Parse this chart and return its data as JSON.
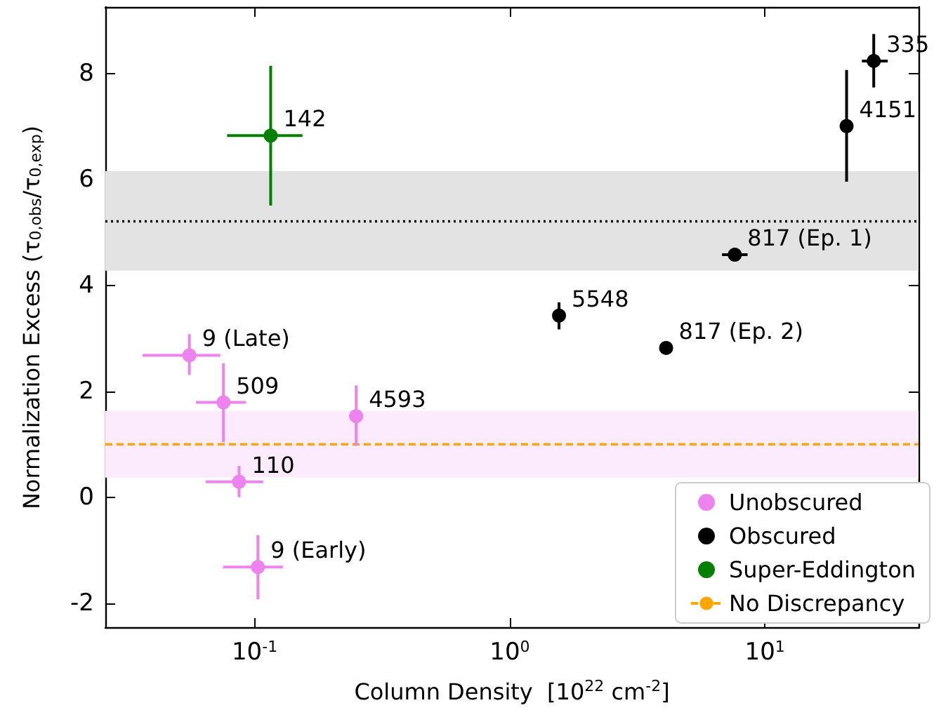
{
  "chart_data": {
    "type": "scatter",
    "xlabel": "Column Density  [10$^{22}$ cm$^{-2}$]",
    "ylabel": "Normalization Excess (τ$_{0,obs}$/τ$_{0,exp}$)",
    "log": "x",
    "xlim": [
      0.026,
      40
    ],
    "ylim": [
      -2.47,
      9.26
    ],
    "xticks": [
      {
        "value": 0.1,
        "label": "10$^{-1}$"
      },
      {
        "value": 1,
        "label": "10$^{0}$"
      },
      {
        "value": 10,
        "label": "10$^{1}$"
      }
    ],
    "yticks": [
      -2,
      0,
      2,
      4,
      6,
      8
    ],
    "grid": false,
    "legend": "bottom right",
    "marker": "circle",
    "series": [
      {
        "name": "Unobscured",
        "color": "#ee82ee",
        "x": [
          0.0555,
          0.0755,
          0.25,
          0.0869,
          0.103
        ],
        "values": [
          2.68,
          1.79,
          1.53,
          0.29,
          -1.32
        ],
        "errors": [
          [
            2.31,
            3.08
          ],
          [
            1.04,
            2.53
          ],
          [
            0.97,
            2.11
          ],
          [
            0,
            0.59
          ],
          [
            -1.93,
            -0.72
          ]
        ],
        "xerrors": [
          [
            0.0364,
            0.0734
          ],
          [
            0.0589,
            0.0925
          ],
          null,
          [
            0.0643,
            0.108
          ],
          [
            0.0752,
            0.129
          ]
        ]
      },
      {
        "name": "Obscured",
        "color": "#000000",
        "x": [
          26.7,
          20.9,
          7.62,
          1.56,
          4.1
        ],
        "values": [
          8.24,
          7.01,
          4.58,
          3.43,
          2.82
        ],
        "errors": [
          [
            7.74,
            8.75
          ],
          [
            5.96,
            8.07
          ],
          null,
          [
            3.17,
            3.68
          ],
          [
            2.7,
            2.94
          ]
        ],
        "xerrors": [
          [
            24,
            30.3
          ],
          null,
          [
            6.79,
            8.55
          ],
          null,
          [
            3.9,
            4.3
          ]
        ]
      },
      {
        "name": "Super-Eddington",
        "color": "#008000",
        "x": [
          0.1156
        ],
        "values": [
          6.83
        ],
        "errors": [
          [
            5.51,
            8.15
          ]
        ],
        "xerrors": [
          [
            0.078,
            0.154
          ]
        ]
      }
    ],
    "ref_lines": [
      {
        "axis": "y",
        "value": 5.21,
        "color": "#000000",
        "line_style": "dotted"
      },
      {
        "axis": "y",
        "value": 1.0,
        "label": "No Discrepancy",
        "color": "#ffa500",
        "line_style": "dashed"
      }
    ],
    "bands": [
      {
        "axis": "y",
        "from": 4.28,
        "to": 6.16,
        "color": "#e3e3e3"
      },
      {
        "axis": "y",
        "from": 0.37,
        "to": 1.63,
        "color": "#fcebfc"
      }
    ],
    "annotations": [
      {
        "text": "142",
        "x": 0.1156,
        "y": 6.83
      },
      {
        "text": "335",
        "x": 26.7,
        "y": 8.24
      },
      {
        "text": "4151",
        "x": 20.9,
        "y": 7.01
      },
      {
        "text": "817 (Ep. 1)",
        "x": 7.62,
        "y": 4.58
      },
      {
        "text": "5548",
        "x": 1.56,
        "y": 3.43
      },
      {
        "text": "817 (Ep. 2)",
        "x": 4.1,
        "y": 2.82
      },
      {
        "text": "9 (Late)",
        "x": 0.0555,
        "y": 2.68
      },
      {
        "text": "509",
        "x": 0.0755,
        "y": 1.79
      },
      {
        "text": "4593",
        "x": 0.25,
        "y": 1.53
      },
      {
        "text": "110",
        "x": 0.0869,
        "y": 0.29
      },
      {
        "text": "9 (Early)",
        "x": 0.103,
        "y": -1.32
      }
    ]
  }
}
